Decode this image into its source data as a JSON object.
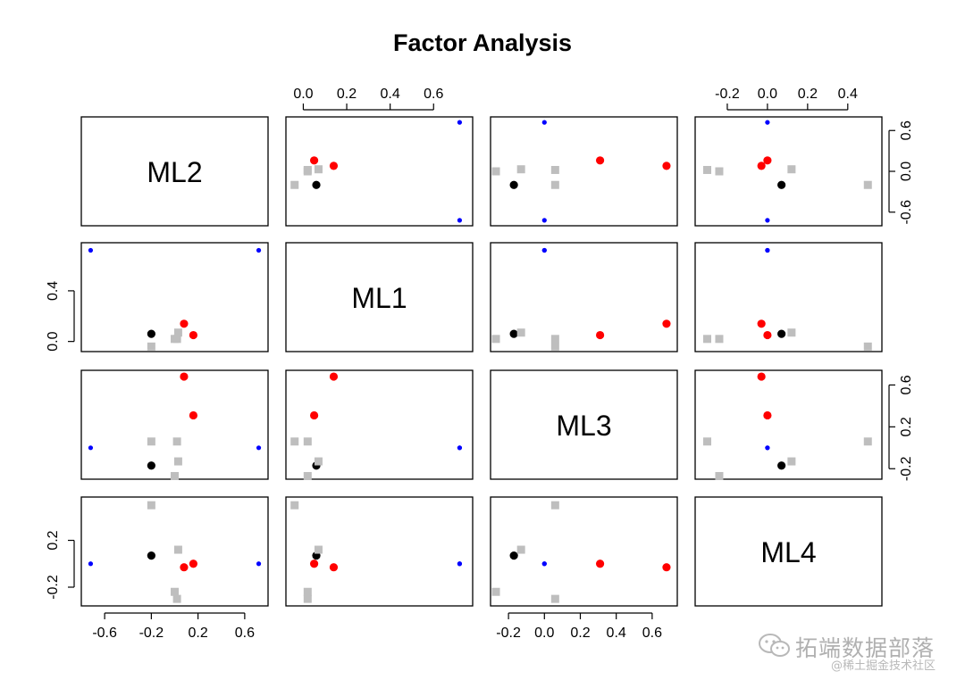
{
  "chart_data": {
    "type": "scatter",
    "subtype": "pairs-matrix",
    "title": "Factor Analysis",
    "variables": [
      "ML2",
      "ML1",
      "ML3",
      "ML4"
    ],
    "scales": {
      "ML2": {
        "range": [
          -0.8,
          0.8
        ],
        "ticks": [
          -0.6,
          -0.2,
          0.2,
          0.6
        ]
      },
      "ML1": {
        "range": [
          -0.08,
          0.78
        ],
        "ticks": [
          0.0,
          0.2,
          0.4,
          0.6
        ]
      },
      "ML3": {
        "range": [
          -0.3,
          0.74
        ],
        "ticks": [
          -0.2,
          0.0,
          0.2,
          0.4,
          0.6
        ]
      },
      "ML4": {
        "range": [
          -0.36,
          0.57
        ],
        "ticks": [
          -0.2,
          0.0,
          0.2,
          0.4
        ]
      }
    },
    "tick_labels": {
      "ML2": [
        "-0.6",
        "-0.2",
        "0.2",
        "0.6"
      ],
      "ML1": [
        "0.0",
        "0.2",
        "0.4",
        "0.6"
      ],
      "ML3": [
        "-0.2",
        "0.0",
        "0.2",
        "0.4",
        "0.6"
      ],
      "ML4": [
        "-0.2",
        "0.0",
        "0.2",
        "0.4"
      ]
    },
    "axes": [
      {
        "side": "top",
        "column": 1,
        "variable": "ML1",
        "ticks": [
          0.0,
          0.2,
          0.4,
          0.6
        ],
        "labels": [
          "0.0",
          "0.2",
          "0.4",
          "0.6"
        ]
      },
      {
        "side": "top",
        "column": 3,
        "variable": "ML4",
        "ticks": [
          -0.2,
          0.0,
          0.2,
          0.4
        ],
        "labels": [
          "-0.2",
          "0.0",
          "0.2",
          "0.4"
        ]
      },
      {
        "side": "bottom",
        "column": 0,
        "variable": "ML2",
        "ticks": [
          -0.6,
          -0.2,
          0.2,
          0.6
        ],
        "labels": [
          "-0.6",
          "-0.2",
          "0.2",
          "0.6"
        ]
      },
      {
        "side": "bottom",
        "column": 2,
        "variable": "ML3",
        "ticks": [
          -0.2,
          0.0,
          0.2,
          0.4,
          0.6
        ],
        "labels": [
          "-0.2",
          "0.0",
          "0.2",
          "0.4",
          "0.6"
        ]
      },
      {
        "side": "left",
        "row": 1,
        "variable": "ML1",
        "ticks": [
          0.0,
          0.4
        ],
        "labels": [
          "0.0",
          "0.4"
        ]
      },
      {
        "side": "left",
        "row": 3,
        "variable": "ML4",
        "ticks": [
          -0.2,
          0.2
        ],
        "labels": [
          "-0.2",
          "0.2"
        ]
      },
      {
        "side": "right",
        "row": 0,
        "variable": "ML2",
        "ticks": [
          -0.6,
          0.0,
          0.6
        ],
        "labels": [
          "-0.6",
          "0.0",
          "0.6"
        ]
      },
      {
        "side": "right",
        "row": 2,
        "variable": "ML3",
        "ticks": [
          -0.2,
          0.2,
          0.6
        ],
        "labels": [
          "-0.2",
          "0.2",
          "0.6"
        ]
      }
    ],
    "points": [
      {
        "ML2": -0.72,
        "ML1": 0.72,
        "ML3": 0.0,
        "ML4": 0.0,
        "color": "#0000ff",
        "shape": "small-circle"
      },
      {
        "ML2": 0.72,
        "ML1": 0.72,
        "ML3": 0.0,
        "ML4": 0.0,
        "color": "#0000ff",
        "shape": "small-circle"
      },
      {
        "ML2": 0.08,
        "ML1": 0.14,
        "ML3": 0.68,
        "ML4": -0.03,
        "color": "#ff0000",
        "shape": "circle"
      },
      {
        "ML2": 0.16,
        "ML1": 0.05,
        "ML3": 0.31,
        "ML4": 0.0,
        "color": "#ff0000",
        "shape": "circle"
      },
      {
        "ML2": -0.2,
        "ML1": 0.06,
        "ML3": -0.17,
        "ML4": 0.07,
        "color": "#000000",
        "shape": "circle"
      },
      {
        "ML2": -0.2,
        "ML1": -0.04,
        "ML3": 0.06,
        "ML4": 0.5,
        "color": "#bebebe",
        "shape": "square"
      },
      {
        "ML2": 0.03,
        "ML1": 0.07,
        "ML3": -0.13,
        "ML4": 0.12,
        "color": "#bebebe",
        "shape": "square"
      },
      {
        "ML2": 0.02,
        "ML1": 0.02,
        "ML3": 0.06,
        "ML4": -0.3,
        "color": "#bebebe",
        "shape": "square"
      },
      {
        "ML2": 0.0,
        "ML1": 0.02,
        "ML3": -0.27,
        "ML4": -0.24,
        "color": "#bebebe",
        "shape": "square"
      }
    ],
    "grid": false,
    "legend": "none"
  },
  "watermark": {
    "main": "拓端数据部落",
    "sub": "@稀土掘金技术社区"
  }
}
